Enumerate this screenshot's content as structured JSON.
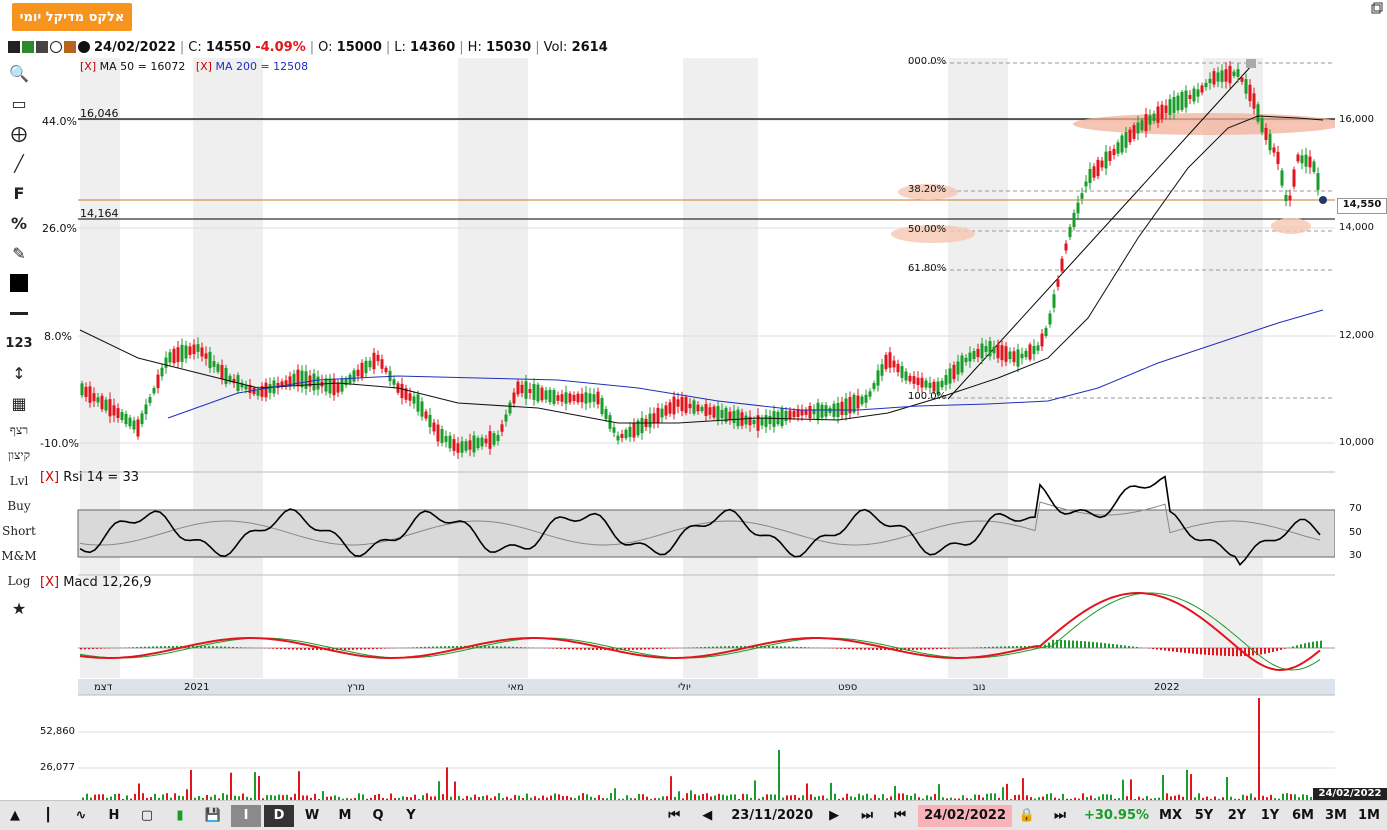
{
  "window": {
    "tab_title": "אלקס מדיקל יומי",
    "restore_icon": "restore-window-icon"
  },
  "info": {
    "date": "24/02/2022",
    "close_label": "C:",
    "close": "14550",
    "change": "-4.09%",
    "open_label": "O:",
    "open": "15000",
    "low_label": "L:",
    "low": "14360",
    "high_label": "H:",
    "high": "15030",
    "vol_label": "Vol:",
    "vol": "2614"
  },
  "indicators": {
    "x": "[X]",
    "ma50": "MA 50 = 16072",
    "ma200": "MA 200 = 12508",
    "rsi": "Rsi 14 = 33",
    "macd": "Macd 12,26,9"
  },
  "left_tools": {
    "text_items": [
      "רצף",
      "קיצון",
      "Lvl",
      "Buy",
      "Short",
      "M&M",
      "Log"
    ]
  },
  "price_panel": {
    "pct_labels": [
      "44.0%",
      "26.0%",
      "8.0%",
      "-10.0%"
    ],
    "level_hi": "16,046",
    "level_lo": "14,164",
    "fib_labels": [
      "000.0%",
      "38.20%",
      "50.00%",
      "61.80%",
      "100.0%"
    ],
    "right_ticks": [
      "16,000",
      "14,000",
      "12,000",
      "10,000"
    ],
    "last_price": "14,550"
  },
  "rsi_panel": {
    "ticks": [
      "70",
      "50",
      "30"
    ]
  },
  "x_axis": {
    "labels": [
      "דצמ",
      "2021",
      "מרץ",
      "מאי",
      "יולי",
      "ספט",
      "נוב",
      "2022"
    ]
  },
  "volume_panel": {
    "ticks": [
      "52,860",
      "26,077"
    ],
    "corner_date": "24/02/2022"
  },
  "bottom": {
    "period_buttons": [
      "I",
      "D",
      "W",
      "M",
      "Q",
      "Y"
    ],
    "start_date": "23/11/2020",
    "end_date": "24/02/2022",
    "pct": "+30.95%",
    "range_buttons": [
      "MX",
      "5Y",
      "2Y",
      "1Y",
      "6M",
      "3M",
      "1M"
    ]
  },
  "colors": {
    "accent": "#f7941d",
    "up": "#1a9c2a",
    "down": "#e3141c",
    "ma200": "#1f2fbf"
  }
}
